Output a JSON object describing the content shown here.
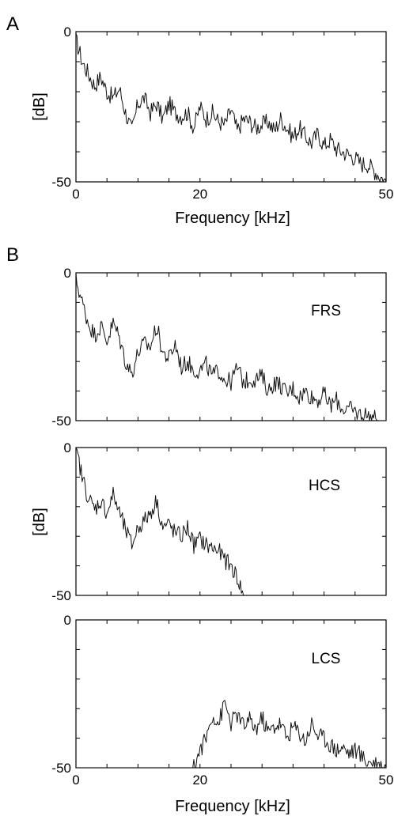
{
  "figure": {
    "panel_letters": [
      "A",
      "B"
    ]
  },
  "chart_data": [
    {
      "type": "line",
      "panel": "A",
      "title": "",
      "xlabel": "Frequency [kHz]",
      "ylabel": "[dB]",
      "xlim": [
        0,
        50
      ],
      "ylim": [
        -50,
        0
      ],
      "x_ticks": [
        0,
        20,
        50
      ],
      "y_ticks": [
        0,
        -50
      ],
      "grid": false,
      "series": [
        {
          "x": [
            0,
            0.5,
            1,
            2,
            3,
            4,
            5,
            6,
            7,
            8,
            9,
            10,
            11,
            12,
            13,
            14,
            15,
            16,
            17,
            18,
            19,
            20,
            21,
            22,
            23,
            24,
            25,
            26,
            27,
            28,
            29,
            30,
            31,
            32,
            33,
            34,
            35,
            36,
            37,
            38,
            39,
            40,
            41,
            42,
            43,
            44,
            45,
            46,
            47,
            48,
            49,
            50
          ],
          "y": [
            -3,
            -6,
            -10,
            -14,
            -18,
            -15,
            -20,
            -22,
            -19,
            -27,
            -33,
            -24,
            -22,
            -27,
            -24,
            -29,
            -24,
            -27,
            -28,
            -27,
            -32,
            -25,
            -29,
            -27,
            -30,
            -31,
            -26,
            -33,
            -29,
            -30,
            -32,
            -31,
            -30,
            -33,
            -29,
            -32,
            -35,
            -32,
            -35,
            -37,
            -34,
            -38,
            -36,
            -39,
            -40,
            -41,
            -42,
            -44,
            -44,
            -46,
            -48,
            -50
          ]
        }
      ]
    },
    {
      "type": "line",
      "panel": "B",
      "title": "",
      "xlabel": "",
      "ylabel": "",
      "xlim": [
        0,
        50
      ],
      "ylim": [
        -50,
        0
      ],
      "y_ticks": [
        0,
        -50
      ],
      "grid": false,
      "series": [
        {
          "name": "FRS",
          "x": [
            0,
            0.5,
            1,
            2,
            3,
            4,
            5,
            6,
            7,
            8,
            9,
            10,
            11,
            12,
            13,
            14,
            15,
            16,
            17,
            18,
            19,
            20,
            21,
            22,
            23,
            24,
            25,
            26,
            27,
            28,
            29,
            30,
            31,
            32,
            33,
            34,
            35,
            36,
            37,
            38,
            39,
            40,
            41,
            42,
            43,
            44,
            45,
            46,
            47,
            48,
            49,
            50
          ],
          "y": [
            -2,
            -6,
            -10,
            -17,
            -21,
            -18,
            -23,
            -17,
            -22,
            -30,
            -34,
            -27,
            -24,
            -25,
            -18,
            -27,
            -29,
            -24,
            -32,
            -30,
            -33,
            -33,
            -31,
            -35,
            -33,
            -36,
            -37,
            -32,
            -37,
            -36,
            -36,
            -35,
            -40,
            -37,
            -38,
            -41,
            -39,
            -42,
            -40,
            -42,
            -43,
            -41,
            -45,
            -43,
            -46,
            -46,
            -47,
            -48,
            -48,
            -49,
            -50,
            -50
          ]
        }
      ]
    },
    {
      "type": "line",
      "panel": "B",
      "title": "",
      "xlabel": "",
      "ylabel": "[dB]",
      "xlim": [
        0,
        50
      ],
      "ylim": [
        -50,
        0
      ],
      "y_ticks": [
        0,
        -50
      ],
      "grid": false,
      "series": [
        {
          "name": "HCS",
          "x": [
            0,
            0.5,
            1,
            2,
            3,
            4,
            5,
            6,
            7,
            8,
            9,
            10,
            11,
            12,
            13,
            14,
            15,
            16,
            17,
            18,
            19,
            20,
            21,
            22,
            23,
            24,
            25,
            26,
            27
          ],
          "y": [
            -1,
            -5,
            -10,
            -17,
            -21,
            -18,
            -22,
            -16,
            -22,
            -28,
            -33,
            -27,
            -25,
            -22,
            -18,
            -27,
            -26,
            -29,
            -30,
            -27,
            -33,
            -31,
            -33,
            -34,
            -35,
            -38,
            -40,
            -44,
            -50
          ]
        }
      ]
    },
    {
      "type": "line",
      "panel": "B",
      "title": "",
      "xlabel": "Frequency [kHz]",
      "ylabel": "",
      "xlim": [
        0,
        50
      ],
      "ylim": [
        -50,
        0
      ],
      "x_ticks": [
        0,
        20,
        50
      ],
      "y_ticks": [
        0,
        -50
      ],
      "grid": false,
      "series": [
        {
          "name": "LCS",
          "x": [
            0,
            19,
            20,
            21,
            22,
            23,
            24,
            25,
            26,
            27,
            28,
            29,
            30,
            31,
            32,
            33,
            34,
            35,
            36,
            37,
            38,
            39,
            40,
            41,
            42,
            43,
            44,
            45,
            46,
            47,
            48,
            49,
            50
          ],
          "y": [
            -50,
            -50,
            -44,
            -40,
            -32,
            -35,
            -28,
            -35,
            -32,
            -36,
            -34,
            -37,
            -33,
            -38,
            -36,
            -35,
            -40,
            -36,
            -38,
            -41,
            -35,
            -39,
            -40,
            -42,
            -44,
            -43,
            -45,
            -44,
            -46,
            -48,
            -48,
            -49,
            -50
          ]
        }
      ]
    }
  ]
}
